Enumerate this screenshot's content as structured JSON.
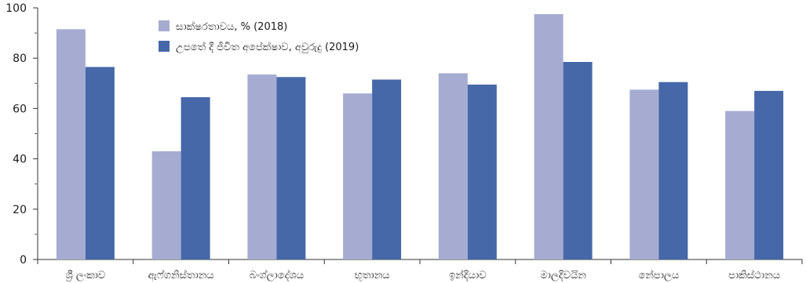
{
  "chart_data": {
    "type": "bar",
    "categories": [
      "ශ්‍රී ලංකාව",
      "ඇෆ්ගනිස්තානය",
      "බංග්ලාදේශය",
      "භූතානය",
      "ඉන්දියාව",
      "මාලදිවයින",
      "නේපාලය",
      "පාකිස්ථානය"
    ],
    "series": [
      {
        "name": "සාක්ෂරතාවය, % (2018)",
        "color": "#a6acd1",
        "values": [
          91.5,
          43,
          73.5,
          66,
          74,
          97.5,
          67.5,
          59
        ]
      },
      {
        "name": "උපතේ දී ජීවිත අපේක්ෂාව, අවුරුදු (2019)",
        "color": "#4668a8",
        "values": [
          76.5,
          64.5,
          72.5,
          71.5,
          69.5,
          78.5,
          70.5,
          67
        ]
      }
    ],
    "ylim": [
      0,
      100
    ],
    "yticks": [
      0,
      20,
      40,
      60,
      80,
      100
    ],
    "yminor": [
      10,
      30,
      50,
      70,
      90
    ],
    "ylabel": "",
    "xlabel": "",
    "title": "",
    "grid": false,
    "legend": "top-left"
  }
}
